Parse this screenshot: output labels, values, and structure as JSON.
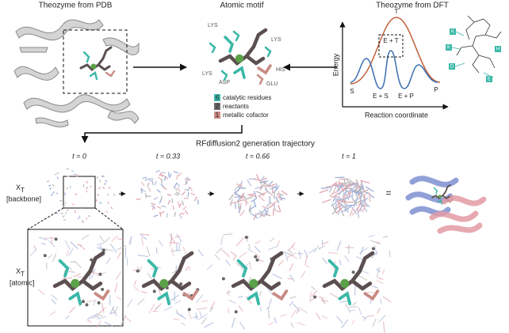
{
  "pdb": {
    "title": "Theozyme from PDB"
  },
  "motif": {
    "title": "Atomic motif",
    "residue_labels": [
      "LYS",
      "LYS",
      "HIS",
      "ASP",
      "GLU",
      "LYS"
    ],
    "legend": [
      {
        "count": 6,
        "label": "catalytic residues",
        "color": "#3bb8a8"
      },
      {
        "count": 2,
        "label": "reactants",
        "color": "#6b6b6b"
      },
      {
        "count": 1,
        "label": "metallic cofactor",
        "color": "#c98b84"
      }
    ]
  },
  "dft": {
    "title": "Theozyme from DFT",
    "y_label": "Energy",
    "x_label": "Reaction coordinate",
    "states": [
      "T",
      "E + T",
      "S",
      "E + S",
      "E + P",
      "P"
    ],
    "residue_badges": [
      "K",
      "K",
      "H",
      "D",
      "E"
    ]
  },
  "trajectory": {
    "title": "RFdiffusion2 generation trajectory",
    "steps": [
      "t = 0",
      "t = 0.33",
      "t = 0.66",
      "t = 1"
    ],
    "equals": "=",
    "rows": [
      {
        "symbol": "X",
        "subscript": "T",
        "label": "[backbone]"
      },
      {
        "symbol": "X",
        "subscript": "T",
        "label": "[atomic]"
      }
    ]
  }
}
